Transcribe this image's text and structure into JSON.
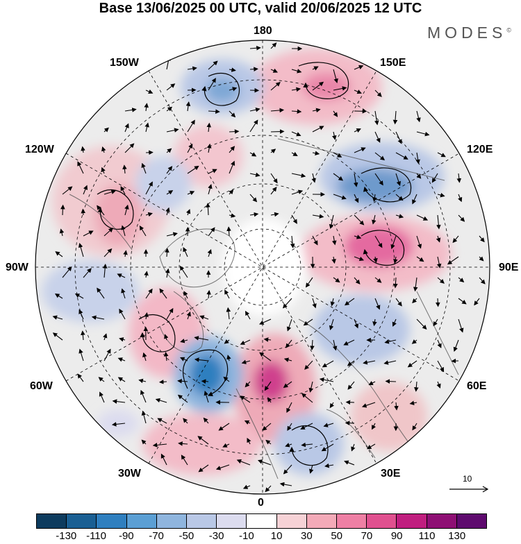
{
  "title": "Base 13/06/2025 00 UTC, valid 20/06/2025 12 UTC",
  "brand": "MODES",
  "brand_mark": "©",
  "longitude_labels": {
    "top": "180",
    "bottom": "0",
    "left": "90W",
    "right": "90E",
    "upper_left_1": "150W",
    "upper_left_2": "120W",
    "upper_right_1": "150E",
    "upper_right_2": "120E",
    "lower_left_1": "60W",
    "lower_left_2": "30W",
    "lower_right_1": "60E",
    "lower_right_2": "30E"
  },
  "reference_vector": {
    "value": "10"
  },
  "colorbar": {
    "colors": [
      "#0d3b5e",
      "#1a5f93",
      "#2f7fbf",
      "#5b9fd4",
      "#8fb5de",
      "#b9c8e6",
      "#dcdcef",
      "#ffffff",
      "#f6d2d6",
      "#f3aab8",
      "#ee7fa4",
      "#e0508f",
      "#c01e7f",
      "#8e0f74",
      "#5e0a6e"
    ],
    "tick_labels": [
      "-130",
      "-110",
      "-90",
      "-70",
      "-50",
      "-30",
      "-10",
      "10",
      "30",
      "50",
      "70",
      "90",
      "110",
      "130"
    ]
  },
  "projection": "north-polar-stereographic",
  "anomaly_field": [
    {
      "name": "pos",
      "level": 50
    },
    {
      "name": "neg",
      "level": -50
    }
  ]
}
